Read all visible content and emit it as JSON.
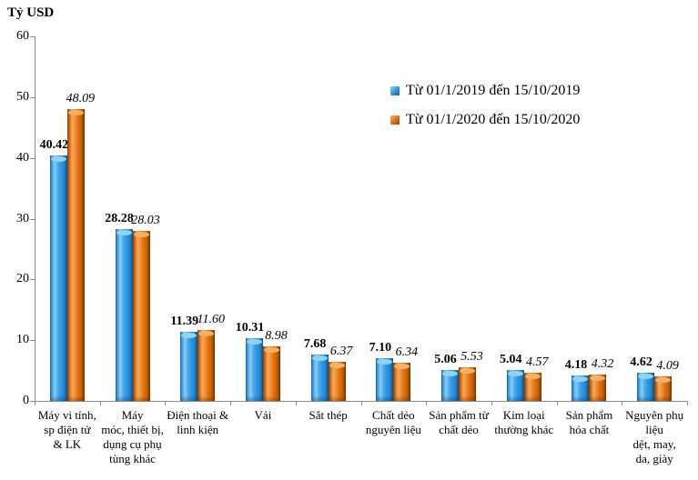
{
  "chart_data": {
    "type": "bar",
    "title": "Tỷ USD",
    "xlabel": "",
    "ylabel": "Tỷ USD",
    "ylim": [
      0,
      60
    ],
    "ytick_step": 10,
    "grid": false,
    "legend_position": "top-right",
    "value_labels": true,
    "categories": [
      "Máy vi tính,\nsp điện tử\n& LK",
      "Máy\nmóc, thiết bị,\ndụng cụ phụ\ntùng khác",
      "Điện thoại &\nlinh kiện",
      "Vải",
      "Sắt thép",
      "Chất dẻo\nnguyên liệu",
      "Sản phẩm từ\nchất dẻo",
      "Kim loại\nthường khác",
      "Sản phẩm\nhóa chất",
      "Nguyên phụ\nliệu\ndệt, may,\nda, giày"
    ],
    "series": [
      {
        "name": "Từ 01/1/2019 đến 15/10/2019",
        "color": "#2E96E4",
        "values": [
          40.42,
          28.28,
          11.39,
          10.31,
          7.68,
          7.1,
          5.06,
          5.04,
          4.18,
          4.62
        ]
      },
      {
        "name": "Từ 01/1/2020 đến 15/10/2020",
        "color": "#E2700C",
        "values": [
          48.09,
          28.03,
          11.6,
          8.98,
          6.37,
          6.34,
          5.53,
          4.57,
          4.32,
          4.09
        ]
      }
    ]
  },
  "colors": {
    "axis": "#8a8a8a",
    "text": "#000000",
    "series_2019": "#2E96E4",
    "series_2020": "#E2700C"
  }
}
